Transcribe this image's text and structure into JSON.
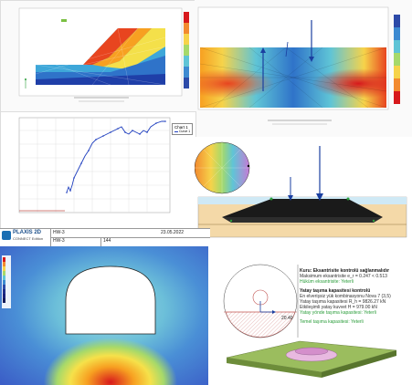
{
  "chart": {
    "legend_title": "Chart 1",
    "legend_item": "Curve 1"
  },
  "plaxis": {
    "product": "PLAXIS 2D",
    "edition": "CONNECT Edition",
    "field_project": "HW-3",
    "field_model": "HW-3",
    "field_number": "144",
    "date": "23.05.2022"
  },
  "foundation_check": {
    "title": "Kuru: Eksantrisite kontrolü sağlanmalıdır",
    "line1": "Maksimum eksantrisite e_r = 0.247 < 0.513",
    "line2": "Hüküm eksantrisite: Yeterli",
    "section2_title": "Yatay taşıma kapasitesi kontrolü",
    "line3": "En elverişsiz yük kombinasyonu Nova 7 (3,5)",
    "line4": "Yatay taşıma kapasitesi  R_h = 9826.27 kN",
    "line5": "Etkileşimli yatay kuvvet   H = 979.00 kN",
    "line6": "Yatay yönde taşıma kapasitesi: Yeterli",
    "line7": "Temel taşıma kapasitesi: Yeterli",
    "dim_label": "20.40"
  }
}
